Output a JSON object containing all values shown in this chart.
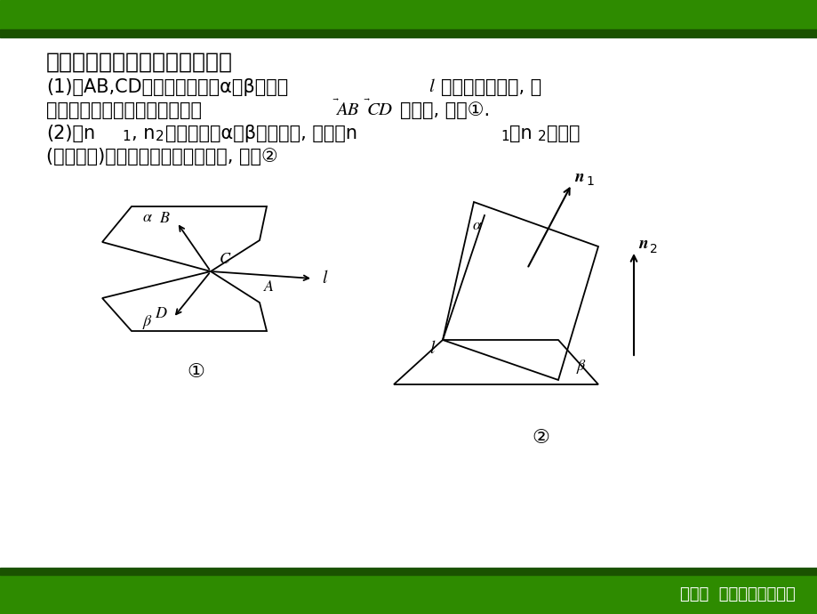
{
  "bg_color": "#ffffff",
  "top_bar_color": "#2d8000",
  "dark_stripe_color": "#1a5200",
  "footer_text": "第七章  空间中的向量方法",
  "footer_text_color": "#ffffff",
  "content_color": "#f0f0f0"
}
